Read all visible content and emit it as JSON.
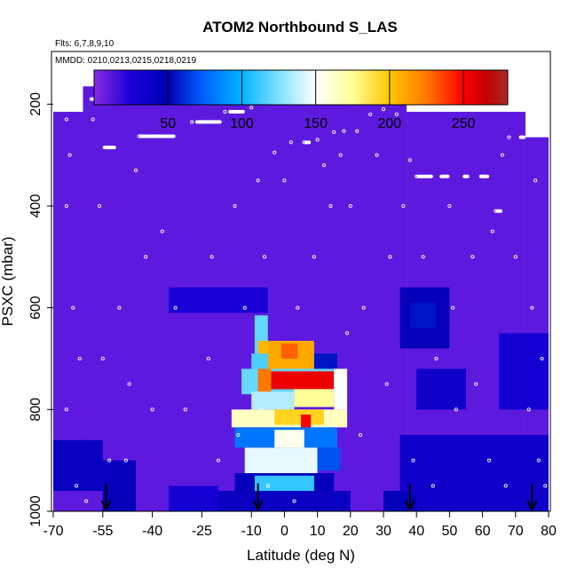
{
  "chart_data": {
    "type": "heatmap",
    "title": "ATOM2 Northbound S_LAS",
    "flights_note": "Flts: 6,7,8,9,10",
    "dates_note": "MMDD: 0210,0213,0215,0218,0219",
    "xlabel": "Latitude (deg N)",
    "ylabel": "PSXC (mbar)",
    "xlim": [
      -70,
      80
    ],
    "x_ticks": [
      -70,
      -55,
      -40,
      -25,
      -10,
      0,
      10,
      20,
      30,
      40,
      50,
      60,
      70,
      80
    ],
    "x_tick_labels": [
      "-70",
      "-55",
      "-40",
      "-25",
      "-10",
      "0",
      "10",
      "20",
      "30",
      "40",
      "50",
      "60",
      "70",
      "80"
    ],
    "ylim": [
      1000,
      100
    ],
    "y_ticks": [
      200,
      400,
      600,
      800,
      1000
    ],
    "y_tick_labels": [
      "200",
      "400",
      "600",
      "800",
      "1000"
    ],
    "colorbar": {
      "range": [
        0,
        280
      ],
      "ticks": [
        50,
        100,
        150,
        200,
        250
      ],
      "tick_labels": [
        "50",
        "100",
        "150",
        "200",
        "250"
      ],
      "stops": [
        {
          "v": 0,
          "color": "#8a2be2"
        },
        {
          "v": 25,
          "color": "#1a00d8"
        },
        {
          "v": 50,
          "color": "#0000b4"
        },
        {
          "v": 75,
          "color": "#0066ff"
        },
        {
          "v": 100,
          "color": "#00b4ff"
        },
        {
          "v": 125,
          "color": "#80e0ff"
        },
        {
          "v": 150,
          "color": "#ffffff"
        },
        {
          "v": 175,
          "color": "#ffff99"
        },
        {
          "v": 200,
          "color": "#ffc800"
        },
        {
          "v": 225,
          "color": "#ff7800"
        },
        {
          "v": 250,
          "color": "#ff0000"
        },
        {
          "v": 265,
          "color": "#c80000"
        },
        {
          "v": 280,
          "color": "#a52a2a"
        }
      ]
    },
    "background_value": 10,
    "coverage": [
      {
        "lat": [
          -70,
          -61
        ],
        "p_top": 215
      },
      {
        "lat": [
          -61,
          37
        ],
        "p_top": 165
      },
      {
        "lat": [
          37,
          73
        ],
        "p_top": 215
      },
      {
        "lat": [
          73,
          80
        ],
        "p_top": 265
      }
    ],
    "cells": [
      {
        "lat": [
          -9,
          -5
        ],
        "p": [
          615,
          690
        ],
        "v": 120
      },
      {
        "lat": [
          -8,
          -3
        ],
        "p": [
          665,
          720
        ],
        "v": 205
      },
      {
        "lat": [
          -10,
          9
        ],
        "p": [
          690,
          725
        ],
        "v": 115
      },
      {
        "lat": [
          -5,
          9
        ],
        "p": [
          665,
          725
        ],
        "v": 210
      },
      {
        "lat": [
          -1,
          4
        ],
        "p": [
          670,
          700
        ],
        "v": 230
      },
      {
        "lat": [
          9,
          16
        ],
        "p": [
          690,
          730
        ],
        "v": 55
      },
      {
        "lat": [
          -13,
          17
        ],
        "p": [
          720,
          770
        ],
        "v": 120
      },
      {
        "lat": [
          -5,
          15
        ],
        "p": [
          725,
          760
        ],
        "v": 255
      },
      {
        "lat": [
          -8,
          -4
        ],
        "p": [
          720,
          765
        ],
        "v": 225
      },
      {
        "lat": [
          -10,
          3
        ],
        "p": [
          765,
          800
        ],
        "v": 135
      },
      {
        "lat": [
          3,
          15
        ],
        "p": [
          760,
          795
        ],
        "v": 175
      },
      {
        "lat": [
          15,
          19
        ],
        "p": [
          720,
          800
        ],
        "v": 150
      },
      {
        "lat": [
          -16,
          19
        ],
        "p": [
          800,
          835
        ],
        "v": 165
      },
      {
        "lat": [
          -3,
          12
        ],
        "p": [
          800,
          830
        ],
        "v": 195
      },
      {
        "lat": [
          5,
          8
        ],
        "p": [
          810,
          850
        ],
        "v": 250
      },
      {
        "lat": [
          -15,
          16
        ],
        "p": [
          835,
          875
        ],
        "v": 80
      },
      {
        "lat": [
          -3,
          6
        ],
        "p": [
          840,
          875
        ],
        "v": 155
      },
      {
        "lat": [
          -12,
          10
        ],
        "p": [
          875,
          925
        ],
        "v": 145
      },
      {
        "lat": [
          10,
          17
        ],
        "p": [
          875,
          920
        ],
        "v": 70
      },
      {
        "lat": [
          -15,
          15
        ],
        "p": [
          925,
          960
        ],
        "v": 45
      },
      {
        "lat": [
          -9,
          9
        ],
        "p": [
          930,
          960
        ],
        "v": 110
      },
      {
        "lat": [
          -20,
          20
        ],
        "p": [
          960,
          1000
        ],
        "v": 40
      },
      {
        "lat": [
          -70,
          -55
        ],
        "p": [
          860,
          960
        ],
        "v": 40
      },
      {
        "lat": [
          -55,
          -45
        ],
        "p": [
          900,
          1000
        ],
        "v": 45
      },
      {
        "lat": [
          -35,
          -20
        ],
        "p": [
          950,
          1000
        ],
        "v": 30
      },
      {
        "lat": [
          35,
          50
        ],
        "p": [
          560,
          680
        ],
        "v": 45
      },
      {
        "lat": [
          38,
          46
        ],
        "p": [
          590,
          640
        ],
        "v": 55
      },
      {
        "lat": [
          40,
          55
        ],
        "p": [
          720,
          800
        ],
        "v": 35
      },
      {
        "lat": [
          35,
          80
        ],
        "p": [
          850,
          1000
        ],
        "v": 35
      },
      {
        "lat": [
          65,
          80
        ],
        "p": [
          650,
          800
        ],
        "v": 30
      },
      {
        "lat": [
          30,
          40
        ],
        "p": [
          960,
          1000
        ],
        "v": 45
      },
      {
        "lat": [
          -35,
          -5
        ],
        "p": [
          560,
          610
        ],
        "v": 25
      }
    ],
    "flight_path": [
      [
        -66,
        230
      ],
      [
        -65,
        300
      ],
      [
        -66,
        400
      ],
      [
        -64,
        600
      ],
      [
        -66,
        800
      ],
      [
        -63,
        950
      ],
      [
        -60,
        980
      ],
      [
        -58,
        230
      ],
      [
        -57,
        190
      ],
      [
        -56,
        400
      ],
      [
        -55,
        700
      ],
      [
        -53,
        900
      ],
      [
        -52,
        285
      ],
      [
        -50,
        600
      ],
      [
        -48,
        900
      ],
      [
        -45,
        330
      ],
      [
        -44,
        263
      ],
      [
        -42,
        500
      ],
      [
        -40,
        800
      ],
      [
        -38,
        263
      ],
      [
        -35,
        263
      ],
      [
        -33,
        600
      ],
      [
        -30,
        800
      ],
      [
        -28,
        235
      ],
      [
        -25,
        235
      ],
      [
        -22,
        500
      ],
      [
        -20,
        900
      ],
      [
        -18,
        215
      ],
      [
        -15,
        400
      ],
      [
        -12,
        600
      ],
      [
        -10,
        207
      ],
      [
        -8,
        350
      ],
      [
        -7,
        800
      ],
      [
        -5,
        950
      ],
      [
        -3,
        295
      ],
      [
        0,
        350
      ],
      [
        2,
        275
      ],
      [
        4,
        600
      ],
      [
        6,
        275
      ],
      [
        8,
        900
      ],
      [
        10,
        270
      ],
      [
        12,
        320
      ],
      [
        14,
        400
      ],
      [
        15,
        255
      ],
      [
        17,
        300
      ],
      [
        18,
        253
      ],
      [
        20,
        400
      ],
      [
        22,
        253
      ],
      [
        24,
        600
      ],
      [
        26,
        220
      ],
      [
        28,
        300
      ],
      [
        30,
        210
      ],
      [
        32,
        500
      ],
      [
        34,
        220
      ],
      [
        36,
        400
      ],
      [
        38,
        310
      ],
      [
        40,
        342
      ],
      [
        42,
        500
      ],
      [
        44,
        342
      ],
      [
        46,
        700
      ],
      [
        48,
        342
      ],
      [
        50,
        400
      ],
      [
        52,
        800
      ],
      [
        55,
        342
      ],
      [
        57,
        500
      ],
      [
        60,
        342
      ],
      [
        62,
        900
      ],
      [
        64,
        410
      ],
      [
        66,
        300
      ],
      [
        68,
        265
      ],
      [
        70,
        500
      ],
      [
        72,
        265
      ],
      [
        74,
        800
      ],
      [
        76,
        350
      ],
      [
        78,
        700
      ],
      [
        79,
        950
      ],
      [
        -69,
        210
      ],
      [
        -62,
        700
      ],
      [
        -47,
        750
      ],
      [
        -37,
        450
      ],
      [
        -23,
        700
      ],
      [
        -14,
        850
      ],
      [
        -6,
        500
      ],
      [
        3,
        980
      ],
      [
        9,
        500
      ],
      [
        19,
        650
      ],
      [
        23,
        850
      ],
      [
        31,
        750
      ],
      [
        39,
        900
      ],
      [
        45,
        950
      ],
      [
        51,
        600
      ],
      [
        58,
        750
      ],
      [
        63,
        450
      ],
      [
        67,
        950
      ],
      [
        75,
        600
      ],
      [
        77,
        900
      ]
    ],
    "flight_bars": [
      {
        "lat": [
          -59,
          -57
        ],
        "p": 190
      },
      {
        "lat": [
          -55,
          -51
        ],
        "p": 285
      },
      {
        "lat": [
          -44,
          -33
        ],
        "p": 263
      },
      {
        "lat": [
          -27,
          -19
        ],
        "p": 235
      },
      {
        "lat": [
          -17,
          -12
        ],
        "p": 215
      },
      {
        "lat": [
          6,
          8
        ],
        "p": 275
      },
      {
        "lat": [
          40,
          45
        ],
        "p": 342
      },
      {
        "lat": [
          47,
          50
        ],
        "p": 342
      },
      {
        "lat": [
          54,
          56
        ],
        "p": 342
      },
      {
        "lat": [
          59,
          62
        ],
        "p": 342
      },
      {
        "lat": [
          64,
          66
        ],
        "p": 410
      },
      {
        "lat": [
          71,
          73
        ],
        "p": 265
      }
    ],
    "arrows": [
      -54,
      -8,
      38,
      75
    ]
  }
}
